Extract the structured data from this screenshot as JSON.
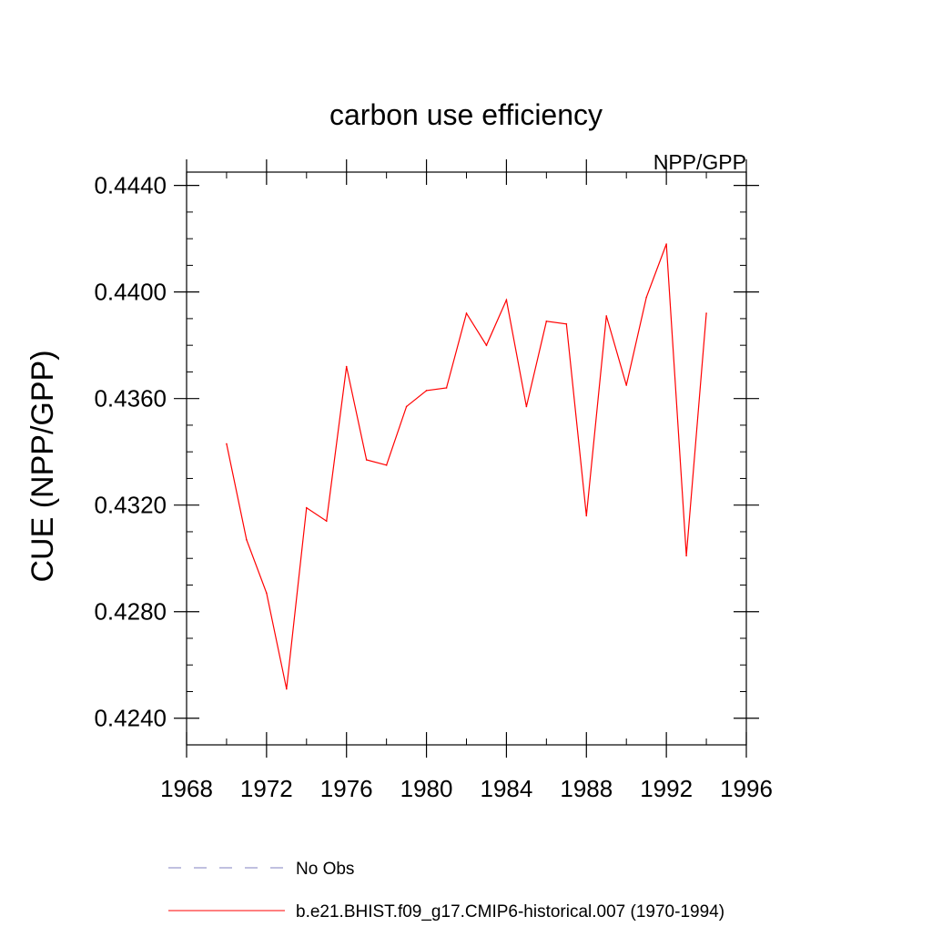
{
  "chart_data": {
    "type": "line",
    "title": "carbon use efficiency",
    "subtitle_right": "NPP/GPP",
    "xlabel": "",
    "ylabel": "CUE  (NPP/GPP)",
    "xlim": [
      1968,
      1996
    ],
    "ylim": [
      0.423,
      0.4445
    ],
    "x_major_ticks": [
      1968,
      1972,
      1976,
      1980,
      1984,
      1988,
      1992,
      1996
    ],
    "x_minor_ticks": [
      1970,
      1974,
      1978,
      1982,
      1986,
      1990,
      1994
    ],
    "x_tick_labels": [
      "1968",
      "1972",
      "1976",
      "1980",
      "1984",
      "1988",
      "1992",
      "1996"
    ],
    "y_major_ticks": [
      0.424,
      0.428,
      0.432,
      0.436,
      0.44,
      0.444
    ],
    "y_tick_labels": [
      "0.4240",
      "0.4280",
      "0.4320",
      "0.4360",
      "0.4400",
      "0.4440"
    ],
    "y_minor_step": 0.001,
    "grid": false,
    "legend_position": "bottom",
    "series": [
      {
        "name": "b.e21.BHIST.f09_g17.CMIP6-historical.007 (1970-1994)",
        "color": "#ff0000",
        "dash": "solid",
        "x": [
          1970,
          1971,
          1972,
          1973,
          1974,
          1975,
          1976,
          1977,
          1978,
          1979,
          1980,
          1981,
          1982,
          1983,
          1984,
          1985,
          1986,
          1987,
          1988,
          1989,
          1990,
          1991,
          1992,
          1993,
          1994
        ],
        "values": [
          0.4343,
          0.4307,
          0.4287,
          0.4251,
          0.4319,
          0.4314,
          0.4372,
          0.4337,
          0.4335,
          0.4357,
          0.4363,
          0.4364,
          0.4392,
          0.438,
          0.4397,
          0.4357,
          0.4389,
          0.4388,
          0.4316,
          0.4391,
          0.4365,
          0.4398,
          0.4418,
          0.4301,
          0.4392
        ]
      }
    ],
    "legend": [
      {
        "label": "No Obs",
        "color": "#8080c0",
        "dash": "dashed"
      },
      {
        "label": "b.e21.BHIST.f09_g17.CMIP6-historical.007 (1970-1994)",
        "color": "#ff0000",
        "dash": "solid"
      }
    ]
  }
}
